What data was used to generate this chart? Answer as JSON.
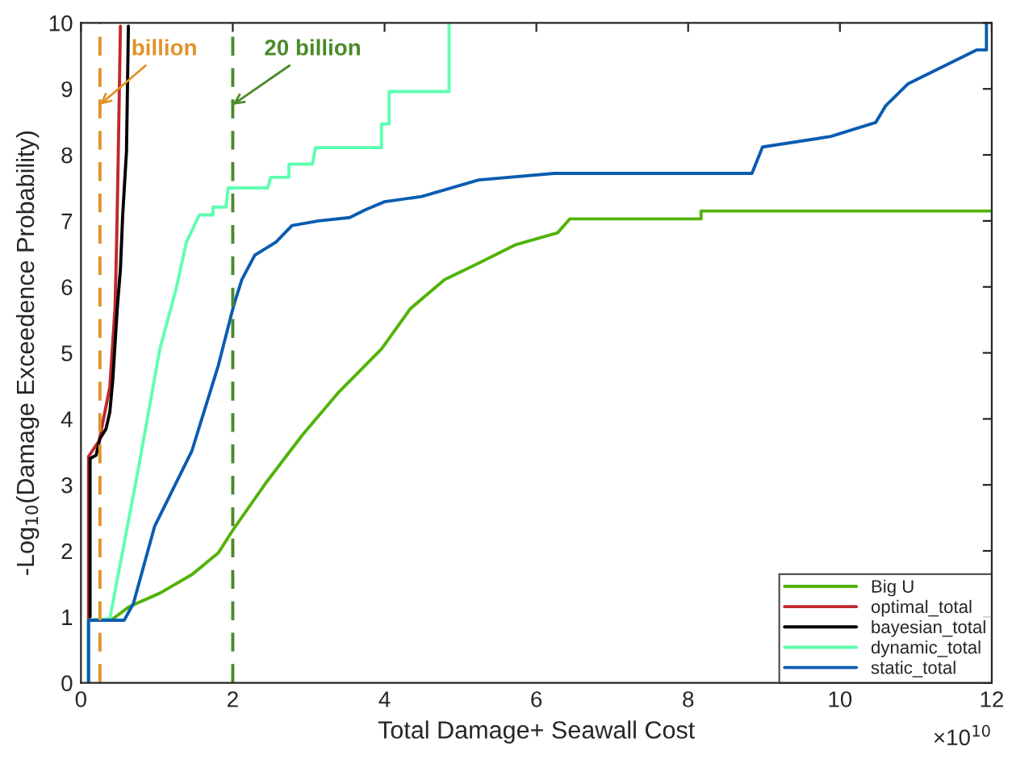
{
  "chart_data": {
    "type": "line",
    "xlabel": "Total Damage+ Seawall Cost",
    "ylabel": "-Log$_{10}$(Damage Exceedence Probability)",
    "xlim": [
      0,
      12
    ],
    "ylim": [
      0,
      10
    ],
    "xticks": [
      0,
      2,
      4,
      6,
      8,
      10,
      12
    ],
    "yticks": [
      0,
      1,
      2,
      3,
      4,
      5,
      6,
      7,
      8,
      9,
      10
    ],
    "grid": false,
    "legend": "bottom right",
    "line_style": "solid",
    "marker": "none",
    "ref_lines": [
      {
        "axis": "x",
        "value": 0.25,
        "label": null,
        "color": "#e0932b",
        "line_style": "dashed"
      },
      {
        "axis": "x",
        "value": 2,
        "label": null,
        "color": "#4a8a2a",
        "line_style": "dashed"
      }
    ],
    "annotations": [
      {
        "text": "billion",
        "x": 0.25,
        "y": 8.76
      },
      {
        "text": "20 billion",
        "x": 2,
        "y": 8.76
      },
      "×10$^{10}$"
    ],
    "series": [
      {
        "name": "Big U",
        "color": "#52b30a",
        "x": [
          0.1,
          0.1,
          0.42,
          0.63,
          1.04,
          1.46,
          1.81,
          2.01,
          2.43,
          2.92,
          3.4,
          3.96,
          4.34,
          4.79,
          5.24,
          5.73,
          6.28,
          6.44,
          8.17,
          8.17,
          12
        ],
        "values": [
          0,
          0.95,
          0.97,
          1.15,
          1.36,
          1.64,
          1.97,
          2.33,
          3.02,
          3.76,
          4.41,
          5.06,
          5.67,
          6.11,
          6.36,
          6.64,
          6.82,
          7.03,
          7.03,
          7.15,
          7.15
        ]
      },
      {
        "name": "optimal_total",
        "color": "#c0282c",
        "x": [
          0.1,
          0.1,
          0.24,
          0.38,
          0.45,
          0.47,
          0.49,
          0.52
        ],
        "values": [
          0.95,
          3.43,
          3.67,
          4.48,
          5.7,
          6.68,
          7.9,
          9.95
        ]
      },
      {
        "name": "bayesian_total",
        "color": "#000000",
        "x": [
          0.12,
          0.12,
          0.2,
          0.25,
          0.33,
          0.38,
          0.42,
          0.48,
          0.52,
          0.55,
          0.6,
          0.625
        ],
        "values": [
          1.0,
          3.4,
          3.45,
          3.7,
          3.85,
          4.1,
          4.6,
          5.7,
          6.27,
          7.09,
          8.06,
          9.95
        ]
      },
      {
        "name": "dynamic_total",
        "color": "#5effb0",
        "x": [
          0.1,
          0.1,
          0.38,
          0.76,
          1.04,
          1.25,
          1.39,
          1.56,
          1.74,
          1.74,
          1.91,
          1.94,
          2.46,
          2.5,
          2.74,
          2.74,
          3.05,
          3.09,
          3.96,
          3.96,
          4.06,
          4.06,
          4.85,
          4.85
        ],
        "values": [
          0,
          0.95,
          0.97,
          3.27,
          5.06,
          5.95,
          6.68,
          7.09,
          7.09,
          7.21,
          7.21,
          7.5,
          7.5,
          7.66,
          7.66,
          7.86,
          7.86,
          8.11,
          8.11,
          8.47,
          8.47,
          8.96,
          8.96,
          9.98
        ]
      },
      {
        "name": "static_total",
        "color": "#0a5cb0",
        "x": [
          0.1,
          0.1,
          0.57,
          0.69,
          0.97,
          1.46,
          1.81,
          2.01,
          2.12,
          2.29,
          2.57,
          2.78,
          3.13,
          3.54,
          3.75,
          4.0,
          4.49,
          5.24,
          6.23,
          8.84,
          8.98,
          9.88,
          10.47,
          10.6,
          10.9,
          11.8,
          11.93,
          11.93
        ],
        "values": [
          0,
          0.95,
          0.95,
          1.2,
          2.37,
          3.51,
          4.81,
          5.71,
          6.11,
          6.48,
          6.68,
          6.93,
          7.0,
          7.05,
          7.17,
          7.29,
          7.37,
          7.62,
          7.72,
          7.72,
          8.12,
          8.28,
          8.49,
          8.74,
          9.08,
          9.59,
          9.59,
          10.0
        ]
      }
    ]
  }
}
